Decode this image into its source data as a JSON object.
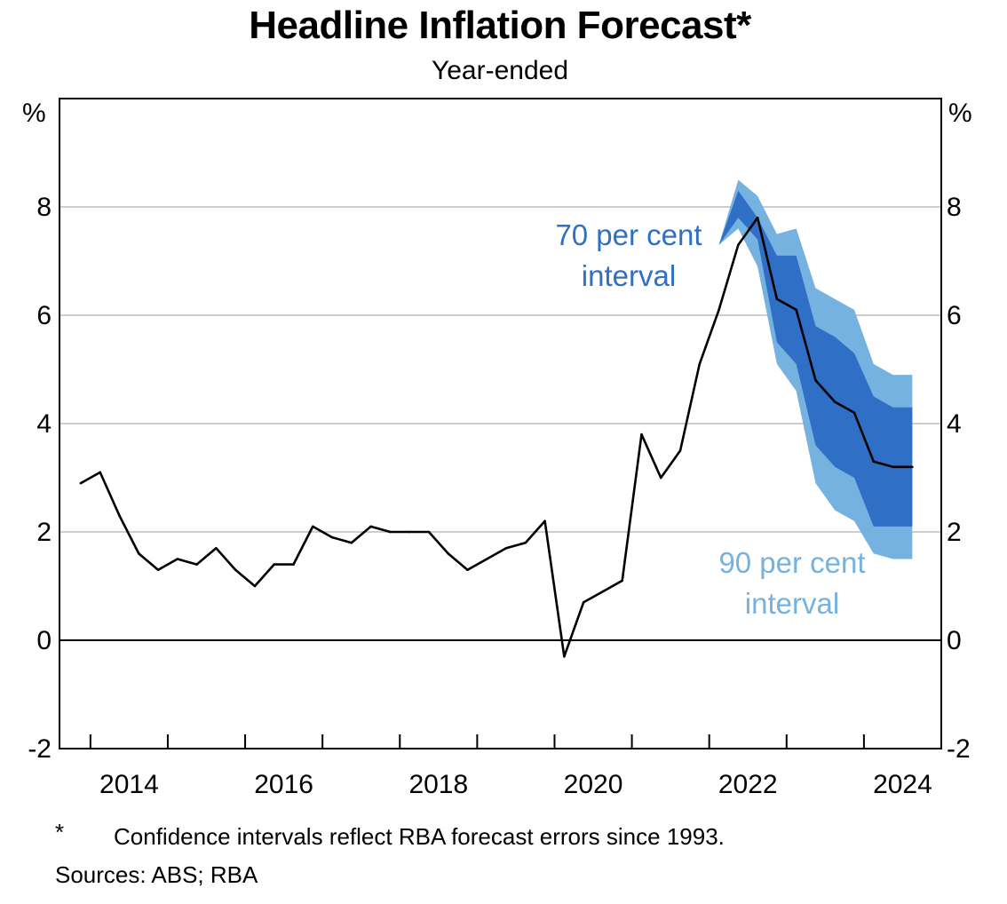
{
  "title": "Headline Inflation Forecast*",
  "subtitle": "Year-ended",
  "unit_left": "%",
  "unit_right": "%",
  "footnote_mark": "*",
  "footnote": "Confidence intervals reflect RBA forecast errors since 1993.",
  "sources": "Sources: ABS; RBA",
  "colors": {
    "line": "#000000",
    "band70": "#2f6fc6",
    "band90": "#76b2e0",
    "grid": "#bdbdbd",
    "ann70": "#2f6fc6",
    "ann90": "#76b2e0"
  },
  "chart_data": {
    "type": "area",
    "title": "Headline Inflation Forecast*",
    "subtitle": "Year-ended",
    "ylabel": "%",
    "ylim": [
      -2,
      10
    ],
    "yticks": [
      -2,
      0,
      2,
      4,
      6,
      8
    ],
    "xlim": [
      2013.6,
      2025.0
    ],
    "xticks": [
      2014,
      2016,
      2018,
      2020,
      2022,
      2024
    ],
    "grid": true,
    "legend": "none",
    "series": [
      {
        "name": "",
        "type": "line",
        "x": [
          2013.875,
          2014.125,
          2014.375,
          2014.625,
          2014.875,
          2015.125,
          2015.375,
          2015.625,
          2015.875,
          2016.125,
          2016.375,
          2016.625,
          2016.875,
          2017.125,
          2017.375,
          2017.625,
          2017.875,
          2018.125,
          2018.375,
          2018.625,
          2018.875,
          2019.125,
          2019.375,
          2019.625,
          2019.875,
          2020.125,
          2020.375,
          2020.625,
          2020.875,
          2021.125,
          2021.375,
          2021.625,
          2021.875,
          2022.125,
          2022.375,
          2022.625,
          2022.875,
          2023.125,
          2023.375,
          2023.625,
          2023.875,
          2024.125,
          2024.375,
          2024.625
        ],
        "values": [
          2.9,
          3.1,
          2.3,
          1.6,
          1.3,
          1.5,
          1.4,
          1.7,
          1.3,
          1.0,
          1.4,
          1.4,
          2.1,
          1.9,
          1.8,
          2.1,
          2.0,
          2.0,
          2.0,
          1.6,
          1.3,
          1.5,
          1.7,
          1.8,
          2.2,
          -0.3,
          0.7,
          0.9,
          1.1,
          3.8,
          3.0,
          3.5,
          5.1,
          6.1,
          7.3,
          7.8,
          6.3,
          6.1,
          4.8,
          4.4,
          4.2,
          3.3,
          3.2,
          3.2
        ]
      },
      {
        "name": "90 per cent interval",
        "type": "band",
        "x": [
          2022.125,
          2022.375,
          2022.625,
          2022.875,
          2023.125,
          2023.375,
          2023.625,
          2023.875,
          2024.125,
          2024.375,
          2024.625
        ],
        "upper": [
          7.3,
          8.5,
          8.2,
          7.5,
          7.6,
          6.5,
          6.3,
          6.1,
          5.1,
          4.9,
          4.9
        ],
        "lower": [
          7.3,
          7.6,
          6.9,
          5.1,
          4.6,
          2.9,
          2.4,
          2.2,
          1.6,
          1.5,
          1.5
        ]
      },
      {
        "name": "70 per cent interval",
        "type": "band",
        "x": [
          2022.125,
          2022.375,
          2022.625,
          2022.875,
          2023.125,
          2023.375,
          2023.625,
          2023.875,
          2024.125,
          2024.375,
          2024.625
        ],
        "upper": [
          7.3,
          8.3,
          7.8,
          7.1,
          7.1,
          5.8,
          5.6,
          5.3,
          4.5,
          4.3,
          4.3
        ],
        "lower": [
          7.3,
          7.8,
          7.4,
          5.5,
          5.1,
          3.6,
          3.2,
          3.0,
          2.1,
          2.1,
          2.1
        ]
      }
    ],
    "annotations": [
      {
        "text": [
          "70 per cent",
          "interval"
        ],
        "series": "70 per cent interval"
      },
      {
        "text": [
          "90 per cent",
          "interval"
        ],
        "series": "90 per cent interval"
      }
    ]
  }
}
